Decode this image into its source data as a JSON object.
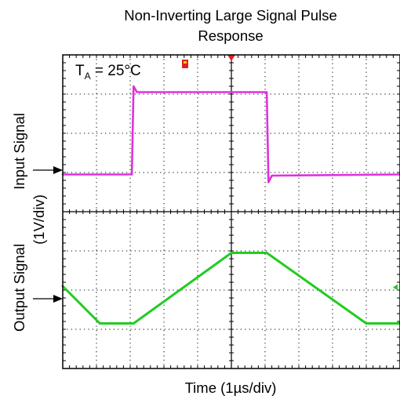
{
  "chart_data": {
    "type": "line",
    "title_line1": "Non-Inverting Large Signal Pulse",
    "title_line2": "Response",
    "xlabel": "Time (1µs/div)",
    "ylabel_input_line1": "Input Signal",
    "ylabel_input_line2": "(1V/div)",
    "ylabel_output": "Output Signal",
    "annotation_prefix": "T",
    "annotation_sub": "A",
    "annotation_suffix": " = 25°C",
    "divisions": {
      "x": 10,
      "y": 8
    },
    "grid": true,
    "xlim": [
      0,
      10
    ],
    "ylim": [
      0,
      8
    ],
    "colors": {
      "input": "#e030e0",
      "output": "#22cc22",
      "grid": "#000000",
      "marker": "#e02020"
    },
    "series": [
      {
        "key": "input",
        "x": [
          0,
          2.05,
          2.1,
          2.2,
          6.05,
          6.1,
          6.2,
          10
        ],
        "y": [
          4.95,
          4.95,
          7.2,
          7.05,
          7.05,
          4.75,
          4.92,
          4.95
        ]
      },
      {
        "key": "output",
        "x": [
          0,
          1.1,
          2.1,
          5.0,
          6.05,
          9.0,
          10
        ],
        "y": [
          2.1,
          1.15,
          1.15,
          2.95,
          2.95,
          1.15,
          1.15
        ]
      }
    ]
  }
}
